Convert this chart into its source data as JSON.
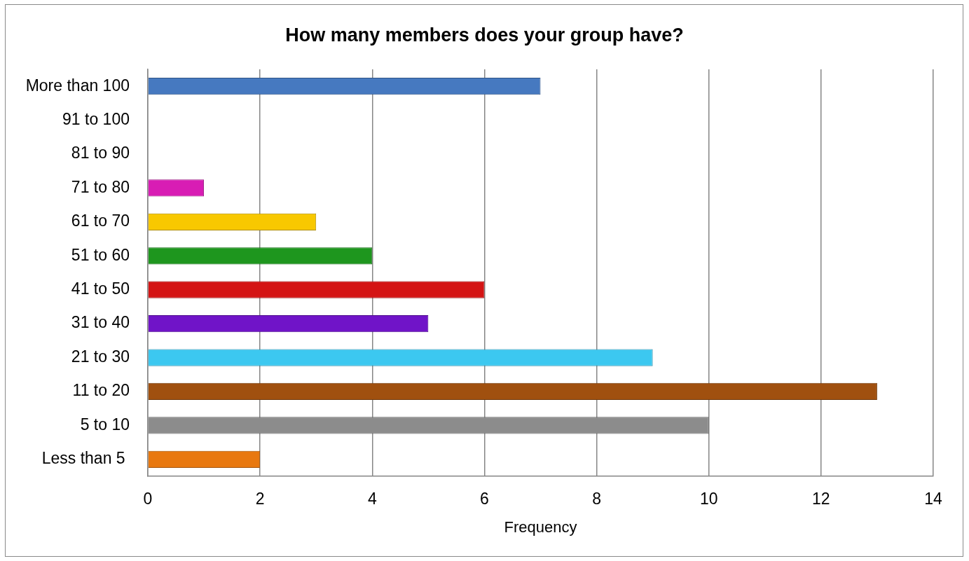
{
  "chart_data": {
    "type": "bar",
    "orientation": "horizontal",
    "title": "How many members does your group have?",
    "xlabel": "Frequency",
    "categories": [
      "More than 100",
      "91 to 100",
      "81 to 90",
      "71 to 80",
      "61 to 70",
      "51 to 60",
      "41 to 50",
      "31 to 40",
      "21 to 30",
      "11 to 20",
      "5 to 10",
      "Less than 5 "
    ],
    "values": [
      7,
      0,
      0,
      1,
      3,
      4,
      6,
      5,
      9,
      13,
      10,
      2
    ],
    "colors": [
      "#4679c0",
      null,
      null,
      "#d81db4",
      "#f8c800",
      "#1e961e",
      "#d41414",
      "#7014c8",
      "#3cc8f0",
      "#a0500f",
      "#8c8c8c",
      "#e8780f"
    ],
    "xlim": [
      0,
      14
    ],
    "xticks": [
      0,
      2,
      4,
      6,
      8,
      10,
      12,
      14
    ],
    "grid": "x"
  }
}
